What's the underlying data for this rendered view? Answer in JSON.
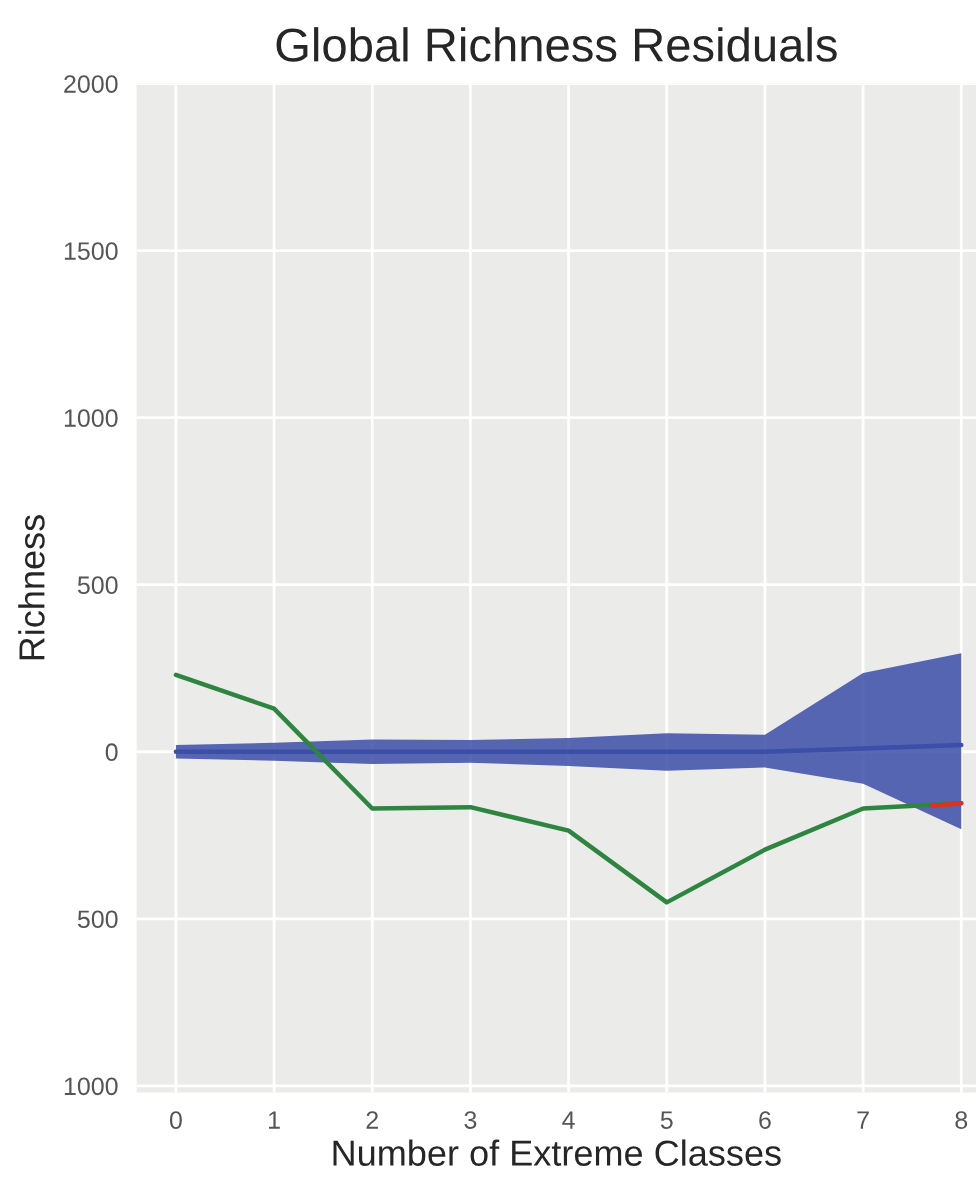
{
  "chart_data": {
    "type": "line",
    "title": "Global Richness Residuals",
    "xlabel": "Number of Extreme Classes",
    "ylabel": "Richness",
    "x": [
      0,
      1,
      2,
      3,
      4,
      5,
      6,
      7,
      8
    ],
    "xlim": [
      -0.4,
      8.15
    ],
    "xticks": [
      0,
      1,
      2,
      3,
      4,
      5,
      6,
      7,
      8
    ],
    "ylim": [
      -1020,
      2000
    ],
    "yticks": [
      {
        "value": -1000,
        "label": "1000"
      },
      {
        "value": -500,
        "label": "500"
      },
      0,
      500,
      1000,
      1500,
      2000
    ],
    "grid": true,
    "marker": "none",
    "line_style": "solid",
    "series": [
      {
        "color": "#3b4ea8",
        "values": [
          0,
          0,
          0,
          0,
          0,
          0,
          0,
          10,
          20
        ],
        "lower": [
          -20,
          -27,
          -37,
          -33,
          -43,
          -57,
          -47,
          -96,
          -232
        ],
        "upper": [
          20,
          27,
          37,
          35,
          41,
          55,
          51,
          236,
          295
        ]
      },
      {
        "color": "#2e8540",
        "values": [
          230,
          129,
          -170,
          -166,
          -236,
          -451,
          -293,
          -170,
          -154
        ]
      },
      {
        "color": "#e0301e",
        "x": [
          7.7,
          8
        ],
        "values": [
          -162,
          -154
        ]
      }
    ]
  }
}
